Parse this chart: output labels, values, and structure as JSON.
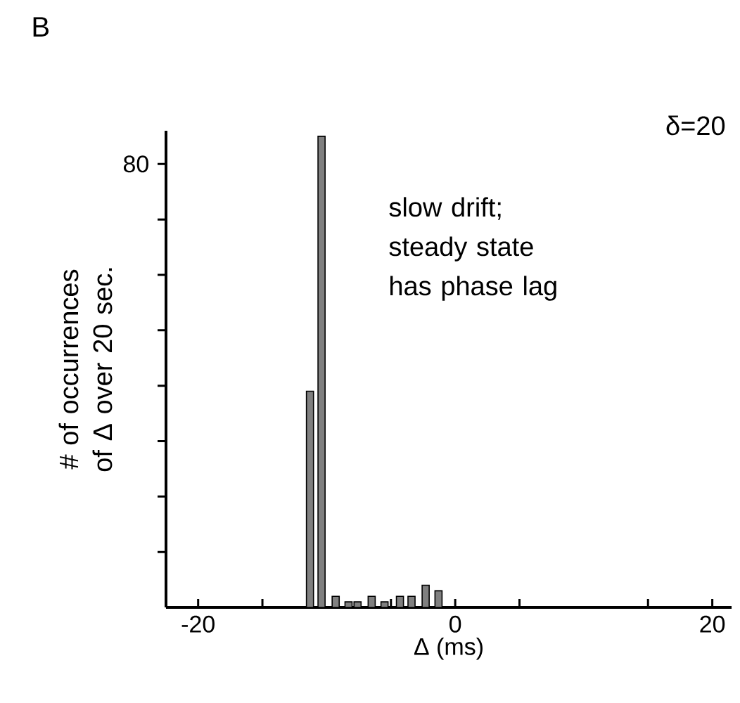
{
  "chart_data": {
    "type": "bar",
    "xlabel": "Δ (ms)",
    "ylabel": "# of occurrences of Δ over 20 sec.",
    "annotations": [
      "B",
      "δ=20",
      "slow drift; steady state has phase lag"
    ],
    "x": [
      -11.3,
      -10.4,
      -9.3,
      -8.3,
      -7.6,
      -6.5,
      -5.5,
      -4.3,
      -3.4,
      -2.3,
      -1.3
    ],
    "values": [
      39,
      85,
      2,
      1,
      1,
      2,
      1,
      2,
      2,
      4,
      3
    ],
    "color": "#808080",
    "xlim": [
      -22.5,
      21.5
    ],
    "xticks": [
      -20,
      {
        "value": -15,
        "label": null
      },
      {
        "value": -5,
        "label": null
      },
      0,
      {
        "value": 5,
        "label": null
      },
      {
        "value": 15,
        "label": null
      },
      20
    ],
    "ylim": [
      0,
      86
    ],
    "yticks": [
      {
        "value": 10,
        "label": null
      },
      {
        "value": 20,
        "label": null
      },
      {
        "value": 30,
        "label": null
      },
      {
        "value": 40,
        "label": null
      },
      {
        "value": 50,
        "label": null
      },
      {
        "value": 60,
        "label": null
      },
      {
        "value": 70,
        "label": null
      },
      80
    ]
  }
}
